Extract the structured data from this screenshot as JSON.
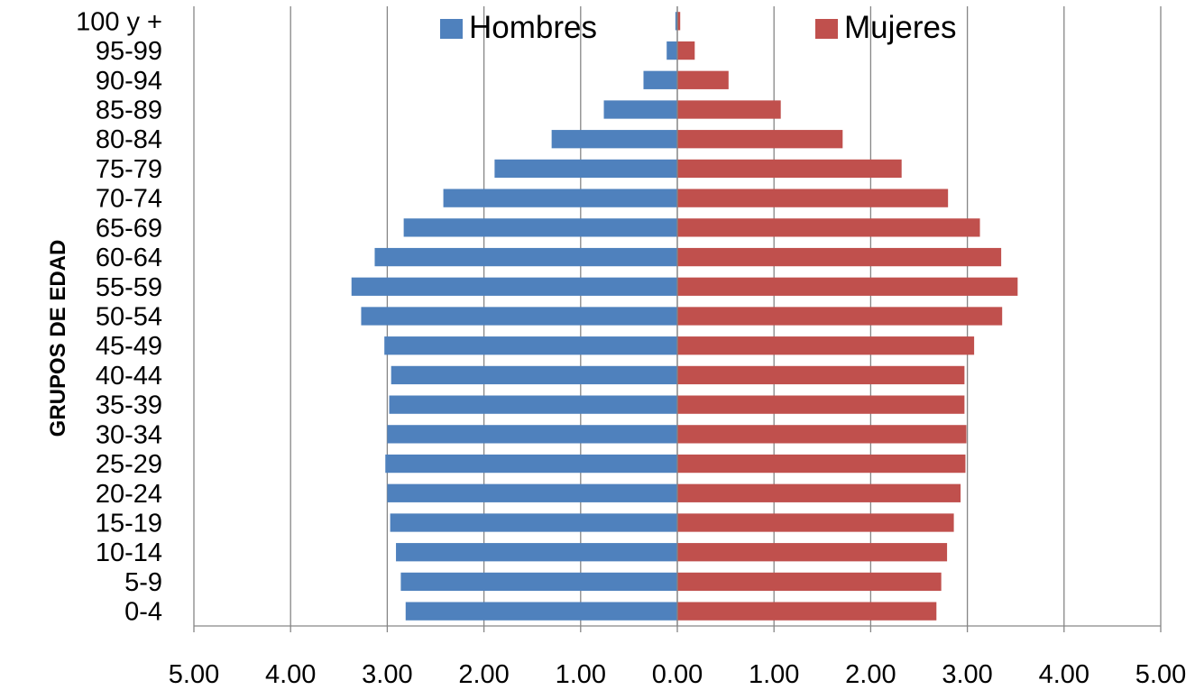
{
  "chart_data": {
    "type": "bar",
    "orientation": "horizontal",
    "layout": "population-pyramid",
    "title": "",
    "ylabel": "GRUPOS DE EDAD",
    "xlabel": "",
    "xlim": [
      -5,
      5
    ],
    "x_ticks": [
      -5,
      -4,
      -3,
      -2,
      -1,
      0,
      1,
      2,
      3,
      4,
      5
    ],
    "x_tick_labels": [
      "5.00",
      "4.00",
      "3.00",
      "2.00",
      "1.00",
      "0.00",
      "1.00",
      "2.00",
      "3.00",
      "4.00",
      "5.00"
    ],
    "grid": "vertical",
    "legend_position": "top",
    "categories": [
      "0-4",
      "5-9",
      "10-14",
      "15-19",
      "20-24",
      "25-29",
      "30-34",
      "35-39",
      "40-44",
      "45-49",
      "50-54",
      "55-59",
      "60-64",
      "65-69",
      "70-74",
      "75-79",
      "80-84",
      "85-89",
      "90-94",
      "95-99",
      "100 y +"
    ],
    "series": [
      {
        "name": "Hombres",
        "color": "#4f81bd",
        "side": "left",
        "values": [
          2.81,
          2.86,
          2.91,
          2.97,
          3.0,
          3.02,
          3.0,
          2.98,
          2.96,
          3.03,
          3.27,
          3.37,
          3.13,
          2.83,
          2.42,
          1.89,
          1.3,
          0.76,
          0.35,
          0.11,
          0.02
        ]
      },
      {
        "name": "Mujeres",
        "color": "#c0504d",
        "side": "right",
        "values": [
          2.68,
          2.73,
          2.79,
          2.86,
          2.93,
          2.98,
          2.99,
          2.97,
          2.97,
          3.07,
          3.36,
          3.52,
          3.35,
          3.13,
          2.8,
          2.32,
          1.71,
          1.07,
          0.53,
          0.18,
          0.03
        ]
      }
    ]
  }
}
